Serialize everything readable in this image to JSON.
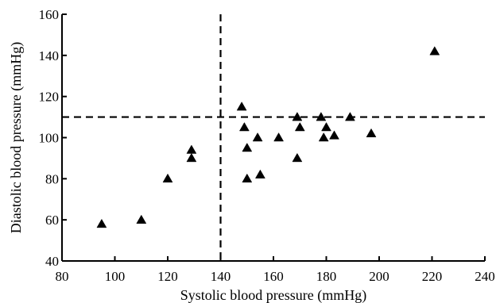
{
  "chart_data": {
    "type": "scatter",
    "xlabel": "Systolic blood pressure (mmHg)",
    "ylabel": "Diastolic blood pressure (mmHg)",
    "xlim": [
      80,
      240
    ],
    "ylim": [
      40,
      160
    ],
    "xticks": [
      80,
      100,
      120,
      140,
      160,
      180,
      200,
      220,
      240
    ],
    "yticks": [
      40,
      60,
      80,
      100,
      120,
      140,
      160
    ],
    "marker": "triangle",
    "reference_lines": [
      {
        "orientation": "vertical",
        "value": 140,
        "style": "dashed"
      },
      {
        "orientation": "horizontal",
        "value": 110,
        "style": "dashed"
      }
    ],
    "points": [
      {
        "x": 95,
        "y": 58
      },
      {
        "x": 110,
        "y": 60
      },
      {
        "x": 120,
        "y": 80
      },
      {
        "x": 129,
        "y": 90
      },
      {
        "x": 129,
        "y": 94
      },
      {
        "x": 148,
        "y": 115
      },
      {
        "x": 149,
        "y": 105
      },
      {
        "x": 150,
        "y": 80
      },
      {
        "x": 150,
        "y": 95
      },
      {
        "x": 154,
        "y": 100
      },
      {
        "x": 155,
        "y": 82
      },
      {
        "x": 162,
        "y": 100
      },
      {
        "x": 169,
        "y": 110
      },
      {
        "x": 169,
        "y": 90
      },
      {
        "x": 170,
        "y": 105
      },
      {
        "x": 178,
        "y": 110
      },
      {
        "x": 179,
        "y": 100
      },
      {
        "x": 180,
        "y": 105
      },
      {
        "x": 183,
        "y": 101
      },
      {
        "x": 189,
        "y": 110
      },
      {
        "x": 197,
        "y": 102
      },
      {
        "x": 221,
        "y": 142
      }
    ]
  }
}
